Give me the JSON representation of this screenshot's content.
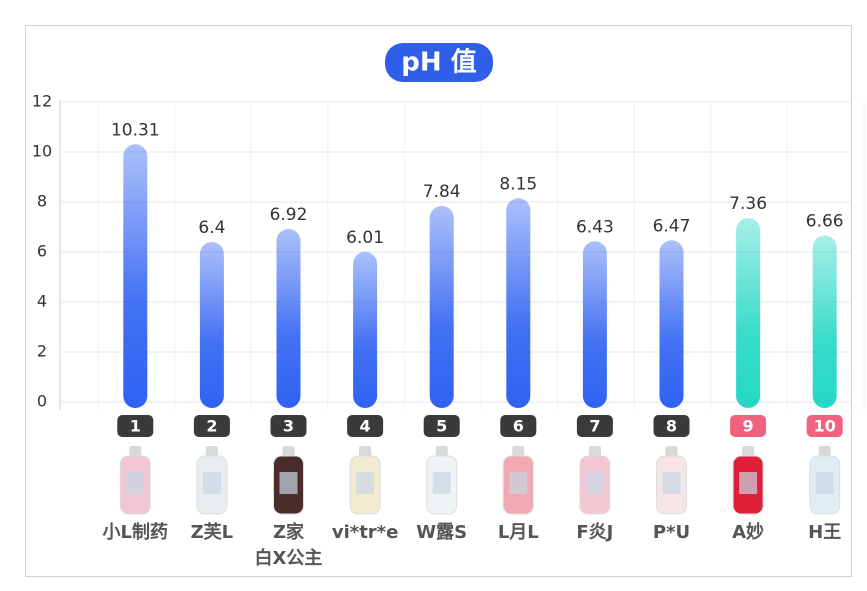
{
  "chart_data": {
    "type": "bar",
    "title": "pH 值",
    "categories": [
      "小L制药",
      "Z芙L",
      "Z家\n白X公主",
      "vi*tr*e",
      "W露S",
      "L月L",
      "F炎J",
      "P*U",
      "A妙",
      "H王"
    ],
    "badges": [
      1,
      2,
      3,
      4,
      5,
      6,
      7,
      8,
      9,
      10
    ],
    "values": [
      10.31,
      6.4,
      6.92,
      6.01,
      7.84,
      8.15,
      6.43,
      6.47,
      7.36,
      6.66
    ],
    "colors": [
      "#2f62f2",
      "#2f62f2",
      "#2f62f2",
      "#2f62f2",
      "#2f62f2",
      "#2f62f2",
      "#2f62f2",
      "#2f62f2",
      "#24d8c4",
      "#24d8c4"
    ],
    "badge_colors": [
      "#3a3a3a",
      "#3a3a3a",
      "#3a3a3a",
      "#3a3a3a",
      "#3a3a3a",
      "#3a3a3a",
      "#3a3a3a",
      "#3a3a3a",
      "#f0627e",
      "#f0627e"
    ],
    "ylim": [
      0,
      12
    ],
    "yticks": [
      0,
      2,
      4,
      6,
      8,
      10,
      12
    ],
    "grid": true
  }
}
